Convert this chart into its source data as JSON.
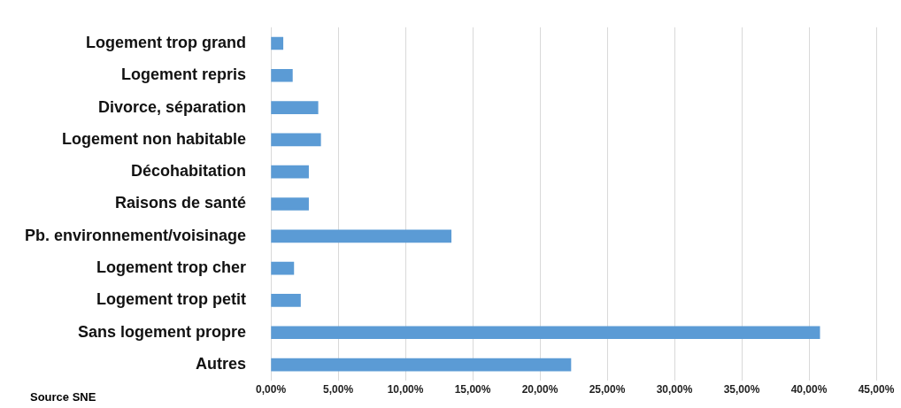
{
  "chart_data": {
    "type": "bar",
    "orientation": "horizontal",
    "categories": [
      "Logement trop grand",
      "Logement repris",
      "Divorce, séparation",
      "Logement non habitable",
      "Décohabitation",
      "Raisons de santé",
      "Pb. environnement/voisinage",
      "Logement trop cher",
      "Logement trop petit",
      "Sans logement propre",
      "Autres"
    ],
    "values": [
      0.9,
      1.6,
      3.5,
      3.7,
      2.8,
      2.8,
      13.4,
      1.7,
      2.2,
      40.8,
      22.3
    ],
    "color": "#5b9bd5",
    "xlim": [
      0,
      45
    ],
    "xticks": [
      {
        "value": 0,
        "label": "0,00%"
      },
      {
        "value": 5,
        "label": "5,00%"
      },
      {
        "value": 10,
        "label": "10,00%"
      },
      {
        "value": 15,
        "label": "15,00%"
      },
      {
        "value": 20,
        "label": "20,00%"
      },
      {
        "value": 25,
        "label": "25,00%"
      },
      {
        "value": 30,
        "label": "30,00%"
      },
      {
        "value": 35,
        "label": "35,00%"
      },
      {
        "value": 40,
        "label": "40,00%"
      },
      {
        "value": 45,
        "label": "45,00%"
      }
    ],
    "grid": "x",
    "legend": false,
    "annotations": [
      "Source SNE"
    ]
  }
}
